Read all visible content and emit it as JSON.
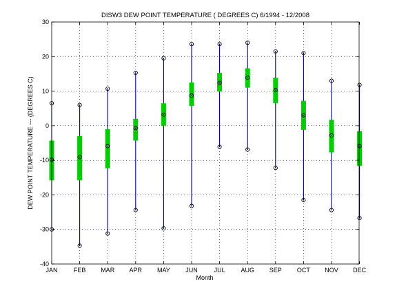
{
  "chart_data": {
    "type": "boxplot",
    "title": "DISW3  DEW POINT TEMPERATURE ( DEGREES C) 6/1994 - 12/2008",
    "xlabel": "Month",
    "ylabel": "DEW POINT TEMPERATURE --- (DEGREES C)",
    "categories": [
      "JAN",
      "FEB",
      "MAR",
      "APR",
      "MAY",
      "JUN",
      "JUL",
      "AUG",
      "SEP",
      "OCT",
      "NOV",
      "DEC"
    ],
    "ylim": [
      -40,
      30
    ],
    "yticks": [
      "-40",
      "-30",
      "-20",
      "-10",
      "0",
      "10",
      "20",
      "30"
    ],
    "grid": true,
    "colors": {
      "whisker": "#00008b",
      "box": "#00cc00",
      "marker": "#000000"
    },
    "series": [
      {
        "min": -30.0,
        "max": 6.5,
        "q1": -15.8,
        "q3": -4.3,
        "median": -9.8
      },
      {
        "min": -34.7,
        "max": 6.0,
        "q1": -15.8,
        "q3": -3.0,
        "median": -9.1
      },
      {
        "min": -31.2,
        "max": 10.7,
        "q1": -12.3,
        "q3": -1.0,
        "median": -5.9
      },
      {
        "min": -24.4,
        "max": 15.3,
        "q1": -4.3,
        "q3": 2.0,
        "median": -0.7
      },
      {
        "min": -29.7,
        "max": 19.5,
        "q1": 0.0,
        "q3": 6.5,
        "median": 3.2
      },
      {
        "min": -23.2,
        "max": 23.6,
        "q1": 5.7,
        "q3": 12.5,
        "median": 8.7
      },
      {
        "min": -6.1,
        "max": 23.6,
        "q1": 9.9,
        "q3": 15.3,
        "median": 12.4
      },
      {
        "min": -6.9,
        "max": 24.0,
        "q1": 11.0,
        "q3": 16.6,
        "median": 13.9
      },
      {
        "min": -12.2,
        "max": 21.5,
        "q1": 6.5,
        "q3": 13.9,
        "median": 10.3
      },
      {
        "min": -21.5,
        "max": 21.0,
        "q1": -1.2,
        "q3": 7.2,
        "median": 3.0
      },
      {
        "min": -24.4,
        "max": 13.0,
        "q1": -7.7,
        "q3": 1.7,
        "median": -2.8
      },
      {
        "min": -26.7,
        "max": 11.8,
        "q1": -11.6,
        "q3": -1.6,
        "median": -5.9
      }
    ]
  }
}
